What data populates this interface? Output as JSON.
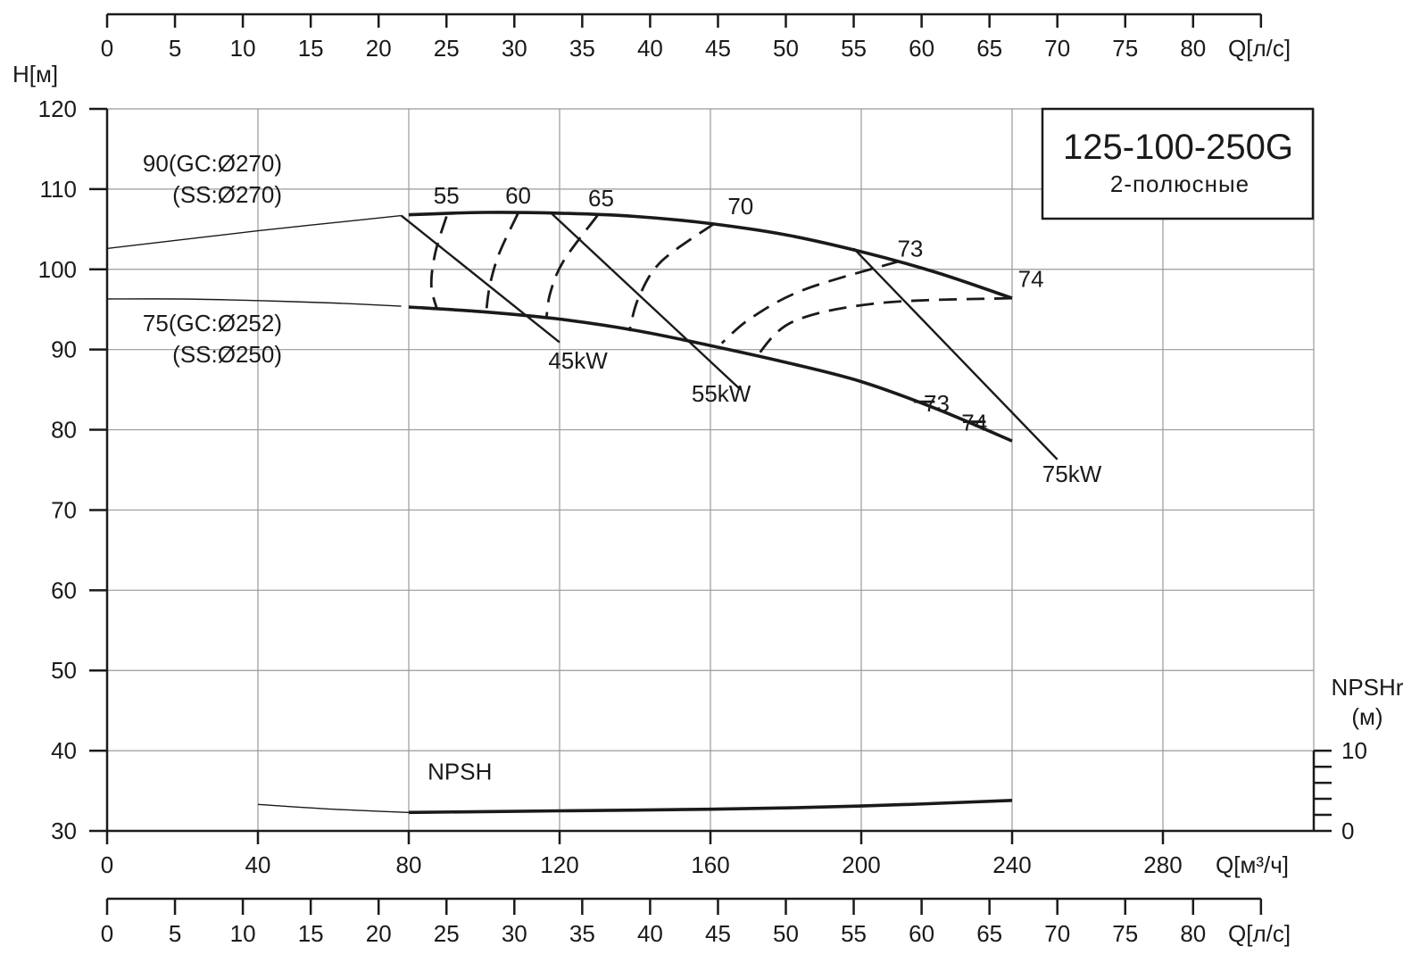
{
  "chart_data": {
    "type": "line",
    "title": "125-100-250G",
    "subtitle": "2-полюсные",
    "ylabel": "H[м]",
    "ylim": [
      30,
      120
    ],
    "yticks": [
      30,
      40,
      50,
      60,
      70,
      80,
      90,
      100,
      110,
      120
    ],
    "xlabel": "Q[м³/ч]",
    "xlim": [
      0,
      320
    ],
    "xticks": [
      0,
      40,
      80,
      120,
      160,
      200,
      240,
      280
    ],
    "secondary_x_label": "Q[л/с]",
    "secondary_x_ticks": [
      0,
      5,
      10,
      15,
      20,
      25,
      30,
      35,
      40,
      45,
      50,
      55,
      60,
      65,
      70,
      75,
      80
    ],
    "npsh_label": "NPSHr",
    "npsh_unit": "(м)",
    "npsh_ticks": [
      0,
      10
    ],
    "grid": true,
    "impeller_curves": [
      {
        "label_line1": "90(GC:Ø270)",
        "label_line2": "(SS:Ø270)",
        "extrapolated": [
          [
            0,
            102.6
          ],
          [
            40,
            104.8
          ],
          [
            78,
            106.7
          ]
        ],
        "operating": [
          [
            80,
            106.8
          ],
          [
            100,
            107.1
          ],
          [
            120,
            107.0
          ],
          [
            140,
            106.6
          ],
          [
            160,
            105.7
          ],
          [
            180,
            104.3
          ],
          [
            200,
            102.2
          ],
          [
            220,
            99.6
          ],
          [
            240,
            96.4
          ]
        ]
      },
      {
        "label_line1": "75(GC:Ø252)",
        "label_line2": "(SS:Ø250)",
        "extrapolated": [
          [
            0,
            96.3
          ],
          [
            20,
            96.3
          ],
          [
            40,
            96.1
          ],
          [
            60,
            95.8
          ],
          [
            78,
            95.4
          ]
        ],
        "operating": [
          [
            80,
            95.3
          ],
          [
            100,
            94.7
          ],
          [
            120,
            93.8
          ],
          [
            140,
            92.4
          ],
          [
            160,
            90.5
          ],
          [
            180,
            88.4
          ],
          [
            200,
            86.0
          ],
          [
            220,
            82.6
          ],
          [
            240,
            78.6
          ]
        ]
      }
    ],
    "efficiency_lines": [
      {
        "label": "55",
        "points": [
          [
            90,
            106.6
          ],
          [
            87,
            102.0
          ],
          [
            86,
            98.0
          ],
          [
            87.5,
            95.0
          ]
        ]
      },
      {
        "label": "60",
        "points": [
          [
            109,
            107.0
          ],
          [
            104,
            102.0
          ],
          [
            101.5,
            98.0
          ],
          [
            100.5,
            94.5
          ]
        ]
      },
      {
        "label": "65",
        "points": [
          [
            130,
            106.7
          ],
          [
            121,
            101.0
          ],
          [
            117.5,
            97.0
          ],
          [
            116.5,
            93.9
          ]
        ]
      },
      {
        "label": "70",
        "points": [
          [
            161,
            105.7
          ],
          [
            147,
            101.0
          ],
          [
            141,
            96.5
          ],
          [
            138.5,
            92.3
          ]
        ]
      },
      {
        "label": "73",
        "points": [
          [
            210,
            101.0
          ],
          [
            185,
            97.5
          ],
          [
            171,
            94.0
          ],
          [
            163,
            90.8
          ]
        ]
      },
      {
        "label": "74",
        "points": [
          [
            240,
            96.4
          ],
          [
            205,
            95.8
          ],
          [
            182,
            93.5
          ],
          [
            172,
            89.0
          ]
        ]
      }
    ],
    "efficiency_labels": [
      {
        "label": "55",
        "x": 90,
        "y": 108.2
      },
      {
        "label": "60",
        "x": 109,
        "y": 108.2
      },
      {
        "label": "65",
        "x": 131,
        "y": 107.9
      },
      {
        "label": "70",
        "x": 168,
        "y": 106.9
      },
      {
        "label": "73",
        "x": 213,
        "y": 101.6
      },
      {
        "label": "74",
        "x": 245,
        "y": 97.8
      },
      {
        "label": "73",
        "x": 220,
        "y": 82.3
      },
      {
        "label": "74",
        "x": 230,
        "y": 79.9
      }
    ],
    "efficiency_marks": [
      {
        "label": "73",
        "x1": 214,
        "x2": 219.5,
        "y": 83.5
      },
      {
        "label": "74",
        "x1": 227,
        "x2": 233,
        "y": 81.0
      }
    ],
    "power_lines": [
      {
        "label": "45kW",
        "from": [
          78,
          106.7
        ],
        "to": [
          120,
          90.9
        ],
        "label_x": 117,
        "label_y": 87.6
      },
      {
        "label": "55kW",
        "from": [
          118,
          106.9
        ],
        "to": [
          168,
          85.0
        ],
        "label_x": 155,
        "label_y": 83.5
      },
      {
        "label": "75kW",
        "from": [
          198,
          102.6
        ],
        "to": [
          252,
          76.3
        ],
        "label_x": 248,
        "label_y": 73.5
      }
    ],
    "npsh_curve": {
      "label": "NPSH",
      "extrapolated": [
        [
          40,
          3.3
        ],
        [
          60,
          2.7
        ],
        [
          80,
          2.3
        ]
      ],
      "operating": [
        [
          80,
          2.3
        ],
        [
          120,
          2.5
        ],
        [
          160,
          2.7
        ],
        [
          200,
          3.1
        ],
        [
          240,
          3.8
        ]
      ]
    }
  }
}
